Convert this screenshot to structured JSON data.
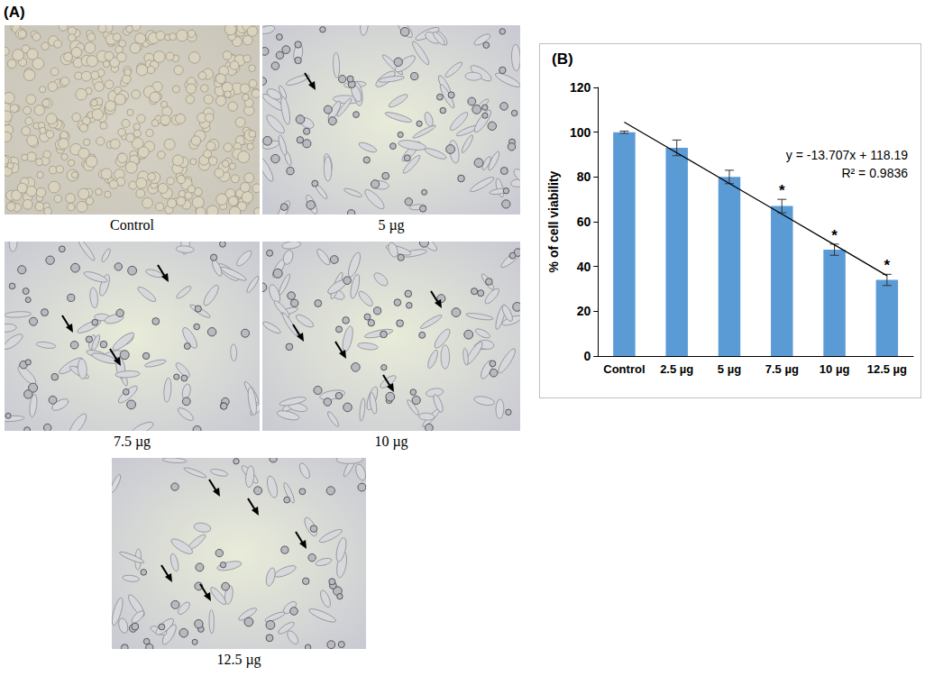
{
  "panel_labels": [
    "(A)",
    "(B)"
  ],
  "images": [
    {
      "caption": "Control"
    },
    {
      "caption": "5 µg"
    },
    {
      "caption": "7.5 µg"
    },
    {
      "caption": "10 µg"
    },
    {
      "caption": "12.5 µg"
    }
  ],
  "chart_data": {
    "type": "bar",
    "y_label": "% of cell viability",
    "categories": [
      "Control",
      "2.5 µg",
      "5 µg",
      "7.5 µg",
      "10 µg",
      "12.5 µg"
    ],
    "series": [
      {
        "type": "bar",
        "color": "#5b9bd5",
        "values": [
          100,
          93,
          80,
          67,
          47.5,
          34
        ],
        "errors": [
          0.5,
          3.5,
          3,
          3,
          2.5,
          2.5
        ],
        "significance": [
          null,
          null,
          null,
          "*",
          "*",
          "*"
        ]
      },
      {
        "type": "line",
        "color": "#000000",
        "line_style": "solid",
        "marker": "none",
        "values": [
          104.5,
          90.8,
          77.1,
          63.4,
          49.7,
          35.9
        ]
      }
    ],
    "annotations": [
      "y = -13.707x + 118.19",
      "R² = 0.9836"
    ],
    "ylim": [
      0,
      120
    ],
    "yticks": [
      0,
      20,
      40,
      60,
      80,
      100,
      120
    ],
    "grid": false
  }
}
